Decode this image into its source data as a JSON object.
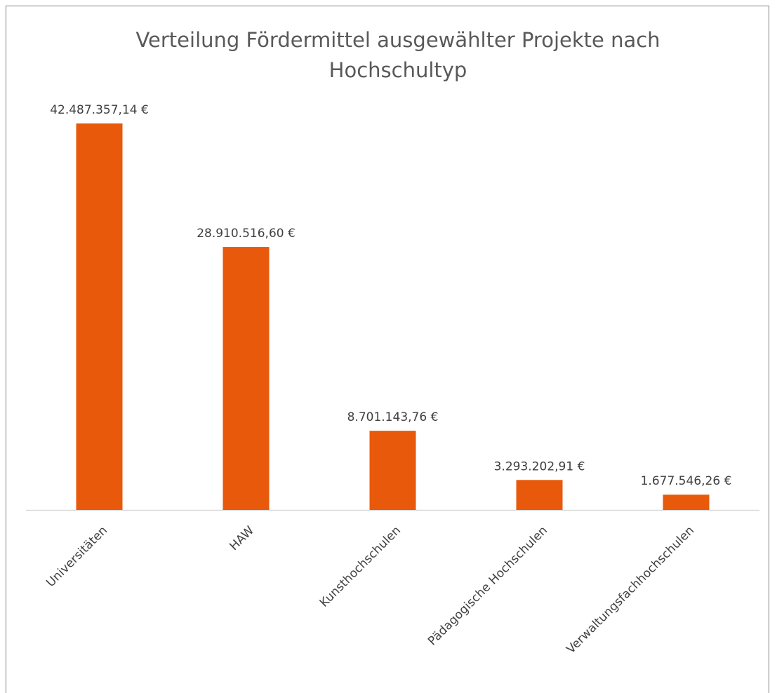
{
  "chart_data": {
    "type": "bar",
    "title": "Verteilung Fördermittel ausgewählter Projekte nach Hochschultyp",
    "categories": [
      "Universitäten",
      "HAW",
      "Kunsthochschulen",
      "Pädagogische Hochschulen",
      "Verwaltungsfachhochschulen"
    ],
    "values": [
      42487357.14,
      28910516.6,
      8701143.76,
      3293202.91,
      1677546.26
    ],
    "value_labels": [
      "42.487.357,14 €",
      "28.910.516,60 €",
      "8.701.143,76 €",
      "3.293.202,91 €",
      "1.677.546,26 €"
    ],
    "color": "#e8590c"
  }
}
